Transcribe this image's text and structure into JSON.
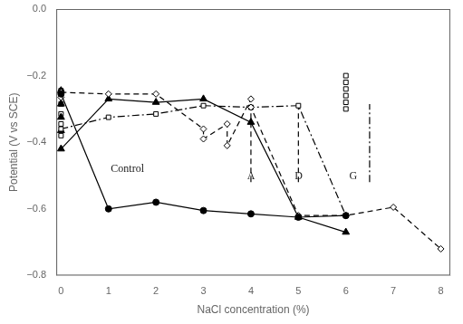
{
  "chart_data": {
    "type": "line",
    "xlabel": "NaCl concentration (%)",
    "ylabel": "Potential (V vs SCE)",
    "xlim": [
      -0.1,
      8.2
    ],
    "ylim": [
      -0.8,
      0.0
    ],
    "xticks": [
      0,
      1,
      2,
      3,
      4,
      5,
      6,
      7,
      8
    ],
    "yticks": [
      {
        "value": 0.0,
        "label": "0.0"
      },
      {
        "value": -0.2,
        "label": "−0.2"
      },
      {
        "value": -0.4,
        "label": "−0.4"
      },
      {
        "value": -0.6,
        "label": "−0.6"
      },
      {
        "value": -0.8,
        "label": "−0.8"
      }
    ],
    "grid": false,
    "series": [
      {
        "x": [
          0,
          1,
          2,
          3,
          4,
          5,
          6
        ],
        "values": [
          -0.255,
          -0.6,
          -0.58,
          -0.605,
          -0.615,
          -0.625,
          -0.62
        ],
        "color": "#000000",
        "marker": "circle",
        "line_style": "solid"
      },
      {
        "x": [
          0,
          1,
          2,
          3,
          3,
          3.5,
          3.5,
          4,
          4,
          5,
          6,
          7,
          8
        ],
        "values": [
          -0.25,
          -0.255,
          -0.255,
          -0.36,
          -0.39,
          -0.345,
          -0.41,
          -0.27,
          -0.295,
          -0.62,
          -0.62,
          -0.595,
          -0.72
        ],
        "color": "#000000",
        "marker": "open_diamond",
        "line_style": "dashed"
      },
      {
        "x": [
          0,
          1,
          2,
          3,
          4,
          5,
          6
        ],
        "values": [
          -0.42,
          -0.27,
          -0.28,
          -0.27,
          -0.34,
          -0.625,
          -0.67
        ],
        "color": "#000000",
        "marker": "triangle",
        "line_style": "solid"
      },
      {
        "x": [
          0,
          1,
          2,
          3,
          4,
          5,
          6
        ],
        "values": [
          -0.36,
          -0.325,
          -0.315,
          -0.29,
          -0.295,
          -0.29,
          -0.62
        ],
        "color": "#000000",
        "marker": "open_square",
        "line_style": "dashdot"
      },
      {
        "x": [
          6,
          6,
          6,
          6,
          6,
          6
        ],
        "values": [
          -0.2,
          -0.22,
          -0.24,
          -0.26,
          -0.28,
          -0.3
        ],
        "color": "#000000",
        "marker": "open_square",
        "line_style": "none"
      },
      {
        "x": [
          0,
          0,
          0,
          0
        ],
        "values": [
          -0.245,
          -0.285,
          -0.325,
          -0.365
        ],
        "color": "#000000",
        "marker": "triangle",
        "line_style": "none"
      },
      {
        "x": [
          0,
          0,
          0,
          0,
          0
        ],
        "values": [
          -0.245,
          -0.285,
          -0.315,
          -0.345,
          -0.38
        ],
        "color": "#000000",
        "marker": "open_square",
        "line_style": "none"
      },
      {
        "x": [
          0,
          0
        ],
        "values": [
          -0.245,
          -0.265
        ],
        "color": "#000000",
        "marker": "open_diamond",
        "line_style": "none"
      },
      {
        "x": [
          4.0,
          4.0
        ],
        "values": [
          -0.52,
          -0.285
        ],
        "color": "#000000",
        "marker": "none",
        "line_style": "dashed"
      },
      {
        "x": [
          5.0,
          5.0
        ],
        "values": [
          -0.52,
          -0.285
        ],
        "color": "#000000",
        "marker": "none",
        "line_style": "dashed"
      },
      {
        "x": [
          6.5,
          6.5
        ],
        "values": [
          -0.52,
          -0.285
        ],
        "color": "#000000",
        "marker": "none",
        "line_style": "dashdot"
      }
    ],
    "annotations": [
      {
        "text": "Control",
        "x": 1.05,
        "y": -0.465
      },
      {
        "text": "A",
        "x": 3.92,
        "y": -0.485
      },
      {
        "text": "D",
        "x": 4.92,
        "y": -0.485
      },
      {
        "text": "G",
        "x": 6.07,
        "y": -0.485
      }
    ]
  }
}
